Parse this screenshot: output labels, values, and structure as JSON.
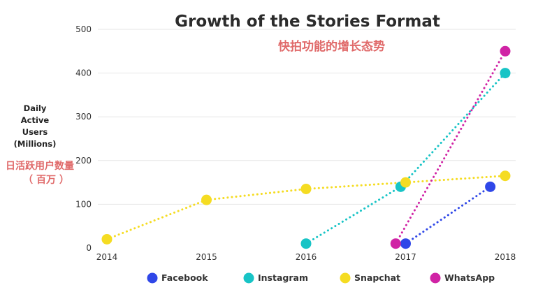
{
  "title": "Growth of the Stories Format",
  "subtitle": "快拍功能的增长态势",
  "ylabel_lines": [
    "Daily",
    "Active",
    "Users",
    "(Millions)"
  ],
  "ylabel_cn_lines": [
    "日活跃用户数量",
    "（ 百万 ）"
  ],
  "chart_data": {
    "type": "scatter",
    "x_ticks": [
      2014,
      2015,
      2016,
      2017,
      2018
    ],
    "y_ticks": [
      0,
      100,
      200,
      300,
      400,
      500
    ],
    "xlim": [
      2014,
      2018
    ],
    "ylim": [
      0,
      500
    ],
    "grid": true,
    "legend_position": "bottom",
    "series": [
      {
        "name": "Facebook",
        "color": "#2f47e8",
        "points": [
          [
            2017.0,
            10
          ],
          [
            2017.85,
            140
          ]
        ]
      },
      {
        "name": "Instagram",
        "color": "#18c4c6",
        "points": [
          [
            2016.0,
            10
          ],
          [
            2016.95,
            140
          ],
          [
            2018.0,
            400
          ]
        ]
      },
      {
        "name": "Snapchat",
        "color": "#f5dc22",
        "points": [
          [
            2014.0,
            20
          ],
          [
            2015.0,
            110
          ],
          [
            2016.0,
            135
          ],
          [
            2017.0,
            150
          ],
          [
            2018.0,
            165
          ]
        ]
      },
      {
        "name": "WhatsApp",
        "color": "#d023a5",
        "points": [
          [
            2016.9,
            10
          ],
          [
            2018.0,
            450
          ]
        ]
      }
    ]
  }
}
